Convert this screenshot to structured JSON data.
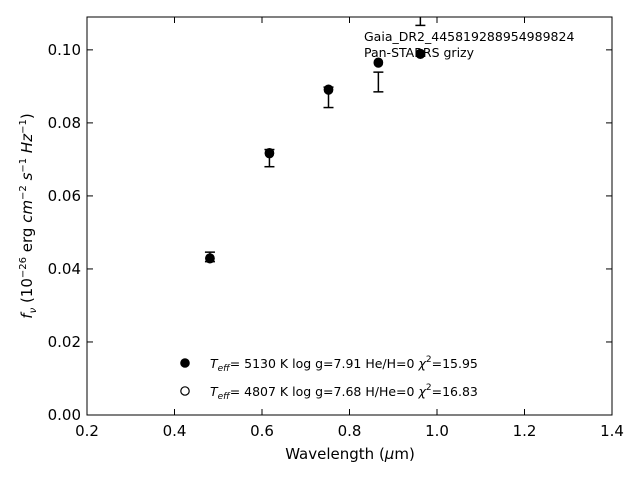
{
  "chart_data": {
    "type": "scatter",
    "xlabel": "Wavelength (μm)",
    "ylabel": "f_ν (10^-26 erg cm^-2 s^-1 Hz^-1)",
    "xlim": [
      0.2,
      1.4
    ],
    "ylim": [
      0.0,
      0.109
    ],
    "x_ticks": [
      0.2,
      0.4,
      0.6,
      0.8,
      1.0,
      1.2,
      1.4
    ],
    "x_tick_labels": [
      "0.2",
      "0.4",
      "0.6",
      "0.8",
      "1.0",
      "1.2",
      "1.4"
    ],
    "y_ticks": [
      0.0,
      0.02,
      0.04,
      0.06,
      0.08,
      0.1
    ],
    "y_tick_labels": [
      "0.00",
      "0.02",
      "0.04",
      "0.06",
      "0.08",
      "0.10"
    ],
    "grid": false,
    "annotations": [
      "Gaia_DR2_445819288954989824",
      "Pan-STARRS grizy"
    ],
    "observed": {
      "x": [
        0.481,
        0.617,
        0.752,
        0.866,
        0.962
      ],
      "y": [
        0.0433,
        0.0712,
        0.089,
        0.0912,
        0.1083
      ],
      "yerr_low": [
        0.0013,
        0.0032,
        0.0048,
        0.0027,
        0.0016
      ],
      "yerr_high": [
        0.0013,
        0.0015,
        0.0008,
        0.0027,
        0.0016
      ]
    },
    "series": [
      {
        "name": "Teff= 5130 K log g=7.91 He/H=0 χ²=15.95",
        "marker": "filled-circle",
        "x": [
          0.481,
          0.617,
          0.752,
          0.866,
          0.962
        ],
        "y": [
          0.043,
          0.0718,
          0.0892,
          0.0966,
          0.099
        ]
      },
      {
        "name": "Teff= 4807 K log g=7.68 H/He=0 χ²=16.83",
        "marker": "open-circle",
        "x": [
          0.481,
          0.617,
          0.752,
          0.866,
          0.962
        ],
        "y": [
          0.0428,
          0.0716,
          0.089,
          0.0964,
          0.0988
        ]
      }
    ],
    "legend": [
      {
        "marker": "filled-circle",
        "teff": "5130",
        "text": " K  log g=7.91  He/H=0  ",
        "chi": "=15.95"
      },
      {
        "marker": "open-circle",
        "teff": "4807",
        "text": " K  log g=7.68  H/He=0  ",
        "chi": "=16.83"
      }
    ],
    "legend_position": "bottom-center"
  }
}
